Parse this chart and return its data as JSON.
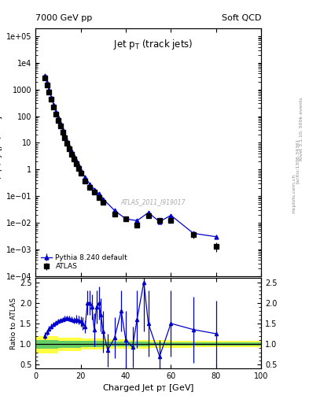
{
  "title_top_left": "7000 GeV pp",
  "title_top_right": "Soft QCD",
  "main_title": "Jet p$_{T}$ (track jets)",
  "ylabel_main": "dσ/dp_{T}dy [μb/GeV]",
  "ylabel_ratio": "Ratio to ATLAS",
  "xlabel": "Charged Jet p$_{T}$ [GeV]",
  "watermark": "ATLAS_2011_I919017",
  "right_text": "Rivet 3.1.10, 500k events   [arXiv:1306.3436]   mcplots.cern.ch",
  "atlas_data_x": [
    4,
    5,
    6,
    7,
    8,
    9,
    10,
    11,
    12,
    13,
    14,
    15,
    16,
    17,
    18,
    19,
    20,
    22,
    24,
    26,
    28,
    30,
    35,
    40,
    45,
    50,
    55,
    60,
    70,
    80
  ],
  "atlas_data_y": [
    2800,
    1500,
    800,
    420,
    220,
    120,
    70,
    42,
    25,
    15.5,
    9.5,
    6.0,
    3.8,
    2.5,
    1.65,
    1.1,
    0.72,
    0.38,
    0.22,
    0.14,
    0.09,
    0.058,
    0.021,
    0.014,
    0.008,
    0.018,
    0.012,
    0.012,
    0.0035,
    0.0013
  ],
  "atlas_data_yerr_lo": [
    150,
    80,
    40,
    22,
    11,
    6,
    3.5,
    2.2,
    1.3,
    0.8,
    0.5,
    0.3,
    0.2,
    0.13,
    0.09,
    0.06,
    0.04,
    0.02,
    0.012,
    0.008,
    0.005,
    0.004,
    0.002,
    0.0015,
    0.001,
    0.003,
    0.002,
    0.002,
    0.001,
    0.0005
  ],
  "atlas_data_yerr_hi": [
    150,
    80,
    40,
    22,
    11,
    6,
    3.5,
    2.2,
    1.3,
    0.8,
    0.5,
    0.3,
    0.2,
    0.13,
    0.09,
    0.06,
    0.04,
    0.02,
    0.012,
    0.008,
    0.005,
    0.004,
    0.002,
    0.0015,
    0.001,
    0.003,
    0.002,
    0.002,
    0.001,
    0.0005
  ],
  "pythia_x": [
    4,
    5,
    6,
    7,
    8,
    9,
    10,
    11,
    12,
    13,
    14,
    15,
    16,
    17,
    18,
    19,
    20,
    22,
    24,
    26,
    28,
    30,
    35,
    40,
    45,
    50,
    55,
    60,
    70,
    80
  ],
  "pythia_y": [
    3300,
    1800,
    960,
    510,
    270,
    150,
    88,
    53,
    31,
    19,
    12,
    7.5,
    4.9,
    3.2,
    2.1,
    1.4,
    0.92,
    0.5,
    0.29,
    0.18,
    0.12,
    0.078,
    0.029,
    0.014,
    0.012,
    0.024,
    0.011,
    0.019,
    0.004,
    0.003
  ],
  "pythia_yerr_lo": [
    100,
    55,
    30,
    16,
    8,
    4.5,
    2.7,
    1.6,
    1.0,
    0.6,
    0.4,
    0.24,
    0.16,
    0.1,
    0.07,
    0.045,
    0.03,
    0.016,
    0.009,
    0.006,
    0.004,
    0.0025,
    0.001,
    0.0007,
    0.0007,
    0.0015,
    0.001,
    0.0015,
    0.0006,
    0.0005
  ],
  "pythia_yerr_hi": [
    100,
    55,
    30,
    16,
    8,
    4.5,
    2.7,
    1.6,
    1.0,
    0.6,
    0.4,
    0.24,
    0.16,
    0.1,
    0.07,
    0.045,
    0.03,
    0.016,
    0.009,
    0.006,
    0.004,
    0.0025,
    0.001,
    0.0007,
    0.0007,
    0.0015,
    0.001,
    0.0015,
    0.0006,
    0.0005
  ],
  "ratio_x": [
    4,
    5,
    6,
    7,
    8,
    9,
    10,
    11,
    12,
    13,
    14,
    15,
    16,
    17,
    18,
    19,
    20,
    21,
    22,
    23,
    24,
    25,
    26,
    27,
    28,
    29,
    30,
    32,
    35,
    38,
    40,
    43,
    45,
    48,
    50,
    55,
    60,
    70,
    80
  ],
  "ratio_y": [
    1.2,
    1.28,
    1.37,
    1.43,
    1.48,
    1.52,
    1.55,
    1.58,
    1.6,
    1.62,
    1.63,
    1.62,
    1.6,
    1.58,
    1.6,
    1.58,
    1.55,
    1.5,
    1.42,
    2.0,
    2.0,
    1.9,
    1.35,
    1.9,
    2.0,
    1.7,
    1.3,
    0.85,
    1.15,
    1.8,
    1.1,
    0.92,
    1.6,
    2.5,
    1.5,
    0.7,
    1.5,
    1.35,
    1.25
  ],
  "ratio_yerr_lo": [
    0.08,
    0.07,
    0.07,
    0.07,
    0.06,
    0.06,
    0.06,
    0.05,
    0.05,
    0.06,
    0.06,
    0.07,
    0.07,
    0.08,
    0.1,
    0.1,
    0.12,
    0.15,
    0.15,
    0.3,
    0.3,
    0.3,
    0.4,
    0.4,
    0.4,
    0.4,
    0.5,
    0.4,
    0.5,
    0.5,
    0.7,
    0.5,
    0.7,
    1.2,
    0.8,
    0.4,
    0.8,
    0.8,
    0.8
  ],
  "ratio_yerr_hi": [
    0.08,
    0.07,
    0.07,
    0.07,
    0.06,
    0.06,
    0.06,
    0.05,
    0.05,
    0.06,
    0.06,
    0.07,
    0.07,
    0.08,
    0.1,
    0.1,
    0.12,
    0.15,
    0.15,
    0.3,
    0.3,
    0.3,
    0.4,
    0.4,
    0.4,
    0.4,
    0.5,
    0.4,
    0.5,
    0.5,
    0.7,
    0.5,
    0.7,
    1.2,
    0.8,
    0.4,
    0.8,
    0.8,
    0.8
  ],
  "band_bins": [
    0,
    10,
    20,
    30,
    40,
    50,
    60,
    70,
    80,
    100
  ],
  "green_lo": [
    0.88,
    0.91,
    0.93,
    0.94,
    0.95,
    0.96,
    0.97,
    0.97,
    0.97
  ],
  "green_hi": [
    1.1,
    1.08,
    1.07,
    1.06,
    1.05,
    1.04,
    1.03,
    1.03,
    1.03
  ],
  "yellow_lo": [
    0.78,
    0.83,
    0.86,
    0.88,
    0.89,
    0.9,
    0.91,
    0.92,
    0.92
  ],
  "yellow_hi": [
    1.2,
    1.16,
    1.13,
    1.11,
    1.1,
    1.09,
    1.08,
    1.08,
    1.08
  ],
  "color_atlas": "#000000",
  "color_pythia": "#0000cc",
  "color_green": "#66cc66",
  "color_yellow": "#ffff44",
  "xlim": [
    0,
    100
  ],
  "ylim_main": [
    0.0001,
    200000.0
  ],
  "ylim_ratio": [
    0.4,
    2.6
  ]
}
